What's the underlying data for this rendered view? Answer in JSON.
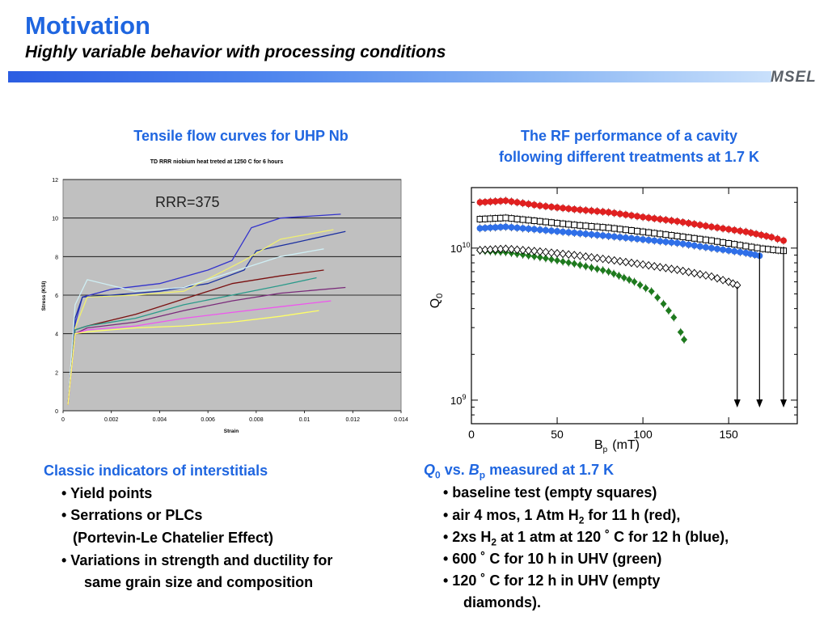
{
  "header": {
    "title": "Motivation",
    "subtitle": "Highly variable behavior with processing conditions",
    "logo_text": "MSEL"
  },
  "left": {
    "caption": "Tensile flow curves for UHP Nb",
    "chart_data": {
      "type": "line",
      "title": "TD RRR niobium heat treted at 1250 C for 6 hours",
      "annotation": "RRR=375",
      "xlabel": "Strain",
      "ylabel": "Stress (KSI)",
      "xlim": [
        0,
        0.014
      ],
      "ylim": [
        0,
        12
      ],
      "x_ticks": [
        "0",
        "0.002",
        "0.004",
        "0.006",
        "0.008",
        "0.01",
        "0.012",
        "0.014"
      ],
      "y_ticks": [
        "0",
        "2",
        "4",
        "6",
        "8",
        "10",
        "12"
      ],
      "grid": "horizontal",
      "series": [
        {
          "color": "#3333cc",
          "points": [
            [
              0.0002,
              0.3
            ],
            [
              0.0005,
              4.5
            ],
            [
              0.0008,
              5.9
            ],
            [
              0.002,
              6.3
            ],
            [
              0.004,
              6.6
            ],
            [
              0.006,
              7.3
            ],
            [
              0.007,
              7.8
            ],
            [
              0.0078,
              9.5
            ],
            [
              0.009,
              10.0
            ],
            [
              0.0115,
              10.2
            ]
          ]
        },
        {
          "color": "#1a2fa0",
          "points": [
            [
              0.0002,
              0.3
            ],
            [
              0.0005,
              4.8
            ],
            [
              0.0008,
              5.9
            ],
            [
              0.002,
              6.0
            ],
            [
              0.004,
              6.2
            ],
            [
              0.006,
              6.6
            ],
            [
              0.0075,
              7.3
            ],
            [
              0.008,
              8.3
            ],
            [
              0.0095,
              8.7
            ],
            [
              0.0117,
              9.3
            ]
          ]
        },
        {
          "color": "#f0f070",
          "points": [
            [
              0.0002,
              0.3
            ],
            [
              0.0005,
              4.3
            ],
            [
              0.001,
              5.9
            ],
            [
              0.003,
              6.0
            ],
            [
              0.005,
              6.2
            ],
            [
              0.0075,
              7.8
            ],
            [
              0.009,
              8.9
            ],
            [
              0.0112,
              9.4
            ]
          ]
        },
        {
          "color": "#cfeff5",
          "points": [
            [
              0.0002,
              0.3
            ],
            [
              0.0005,
              5.5
            ],
            [
              0.001,
              6.8
            ],
            [
              0.002,
              6.5
            ],
            [
              0.003,
              6.2
            ],
            [
              0.005,
              6.4
            ],
            [
              0.0075,
              7.4
            ],
            [
              0.009,
              8.0
            ],
            [
              0.0108,
              8.4
            ]
          ]
        },
        {
          "color": "#7a1010",
          "points": [
            [
              0.0002,
              0.3
            ],
            [
              0.0005,
              4.2
            ],
            [
              0.001,
              4.4
            ],
            [
              0.003,
              5.0
            ],
            [
              0.005,
              5.8
            ],
            [
              0.007,
              6.6
            ],
            [
              0.009,
              7.0
            ],
            [
              0.0108,
              7.3
            ]
          ]
        },
        {
          "color": "#2a9a8a",
          "points": [
            [
              0.0002,
              0.3
            ],
            [
              0.0005,
              4.2
            ],
            [
              0.001,
              4.4
            ],
            [
              0.003,
              4.8
            ],
            [
              0.005,
              5.5
            ],
            [
              0.007,
              6.0
            ],
            [
              0.009,
              6.5
            ],
            [
              0.0105,
              6.9
            ]
          ]
        },
        {
          "color": "#7a2a7a",
          "points": [
            [
              0.0002,
              0.3
            ],
            [
              0.0005,
              4.0
            ],
            [
              0.001,
              4.3
            ],
            [
              0.003,
              4.6
            ],
            [
              0.005,
              5.2
            ],
            [
              0.007,
              5.7
            ],
            [
              0.009,
              6.1
            ],
            [
              0.0117,
              6.4
            ]
          ]
        },
        {
          "color": "#ee55ee",
          "points": [
            [
              0.0002,
              0.3
            ],
            [
              0.0005,
              4.0
            ],
            [
              0.001,
              4.2
            ],
            [
              0.003,
              4.4
            ],
            [
              0.005,
              4.8
            ],
            [
              0.007,
              5.1
            ],
            [
              0.009,
              5.4
            ],
            [
              0.0111,
              5.7
            ]
          ]
        },
        {
          "color": "#ffff66",
          "points": [
            [
              0.0002,
              0.3
            ],
            [
              0.0005,
              4.0
            ],
            [
              0.001,
              4.1
            ],
            [
              0.003,
              4.3
            ],
            [
              0.005,
              4.4
            ],
            [
              0.007,
              4.6
            ],
            [
              0.009,
              4.9
            ],
            [
              0.0106,
              5.2
            ]
          ]
        }
      ]
    },
    "bullets_title": "Classic indicators of interstitials",
    "bullets": [
      "• Yield points",
      "• Serrations or PLCs",
      "(Portevin-Le Chatelier Effect)",
      "• Variations in strength and ductility for",
      "same grain size and composition"
    ]
  },
  "right": {
    "caption_line1": "The RF performance of a cavity",
    "caption_line2": "following different treatments at 1.7 K",
    "chart_data": {
      "type": "scatter",
      "xlabel": "B",
      "xlabel_sub": "p",
      "xlabel_unit": "(mT)",
      "ylabel": "Q",
      "ylabel_sub": "0",
      "xlim": [
        0,
        190
      ],
      "y_log": true,
      "ylim": [
        700000000.0,
        25000000000.0
      ],
      "x_ticks": [
        "0",
        "50",
        "100",
        "150"
      ],
      "y_ticks": [
        {
          "base": "10",
          "exp": "9"
        },
        {
          "base": "10",
          "exp": "10"
        }
      ],
      "series": [
        {
          "color": "#e02020",
          "marker": "filled-circle",
          "points": [
            [
              5,
              20000000000.0
            ],
            [
              20,
              20500000000.0
            ],
            [
              40,
              19000000000.0
            ],
            [
              60,
              18000000000.0
            ],
            [
              80,
              17200000000.0
            ],
            [
              100,
              16000000000.0
            ],
            [
              120,
              15000000000.0
            ],
            [
              140,
              13800000000.0
            ],
            [
              160,
              12800000000.0
            ],
            [
              175,
              11800000000.0
            ],
            [
              182,
              11200000000.0
            ]
          ]
        },
        {
          "color": "#000000",
          "marker": "open-square",
          "points": [
            [
              5,
              15500000000.0
            ],
            [
              20,
              15800000000.0
            ],
            [
              40,
              15000000000.0
            ],
            [
              60,
              14200000000.0
            ],
            [
              80,
              13600000000.0
            ],
            [
              100,
              12800000000.0
            ],
            [
              120,
              12000000000.0
            ],
            [
              140,
              11200000000.0
            ],
            [
              160,
              10300000000.0
            ],
            [
              170,
              9900000000.0
            ],
            [
              182,
              9600000000.0
            ]
          ]
        },
        {
          "color": "#2f6fe8",
          "marker": "filled-circle",
          "points": [
            [
              5,
              13500000000.0
            ],
            [
              20,
              13800000000.0
            ],
            [
              40,
              13200000000.0
            ],
            [
              60,
              12600000000.0
            ],
            [
              80,
              12000000000.0
            ],
            [
              100,
              11400000000.0
            ],
            [
              120,
              10800000000.0
            ],
            [
              140,
              10000000000.0
            ],
            [
              160,
              9300000000.0
            ],
            [
              168,
              8900000000.0
            ]
          ]
        },
        {
          "color": "#1e7a1e",
          "marker": "filled-diamond",
          "points": [
            [
              5,
              9600000000.0
            ],
            [
              20,
              9400000000.0
            ],
            [
              40,
              8700000000.0
            ],
            [
              60,
              7900000000.0
            ],
            [
              80,
              7000000000.0
            ],
            [
              95,
              6000000000.0
            ],
            [
              105,
              5200000000.0
            ],
            [
              112,
              4300000000.0
            ],
            [
              118,
              3500000000.0
            ],
            [
              122,
              2800000000.0
            ],
            [
              124,
              2500000000.0
            ]
          ]
        },
        {
          "color": "#000000",
          "marker": "open-diamond",
          "points": [
            [
              5,
              9700000000.0
            ],
            [
              20,
              9900000000.0
            ],
            [
              40,
              9500000000.0
            ],
            [
              60,
              9000000000.0
            ],
            [
              80,
              8400000000.0
            ],
            [
              100,
              7800000000.0
            ],
            [
              120,
              7200000000.0
            ],
            [
              140,
              6500000000.0
            ],
            [
              150,
              6000000000.0
            ],
            [
              155,
              5700000000.0
            ]
          ]
        }
      ],
      "arrows_at_x": [
        155,
        168,
        182
      ]
    },
    "bullets_title_parts": {
      "q": "Q",
      "q_sub": "0",
      "vs": " vs. ",
      "b": "B",
      "b_sub": "p",
      "rest": " measured at 1.7 K"
    },
    "bullets": [
      "• baseline test (empty squares)",
      {
        "pre": "• air 4 mos, 1 Atm H",
        "sub": "2",
        "post": " for 11 h (red),"
      },
      {
        "pre": "• 2xs H",
        "sub": "2",
        "post": " at 1 atm at 120 ˚ C for 12 h (blue),"
      },
      "• 600 ˚ C for 10 h in UHV (green)",
      "• 120 ˚ C for 12 h in UHV (empty",
      "diamonds)."
    ]
  }
}
